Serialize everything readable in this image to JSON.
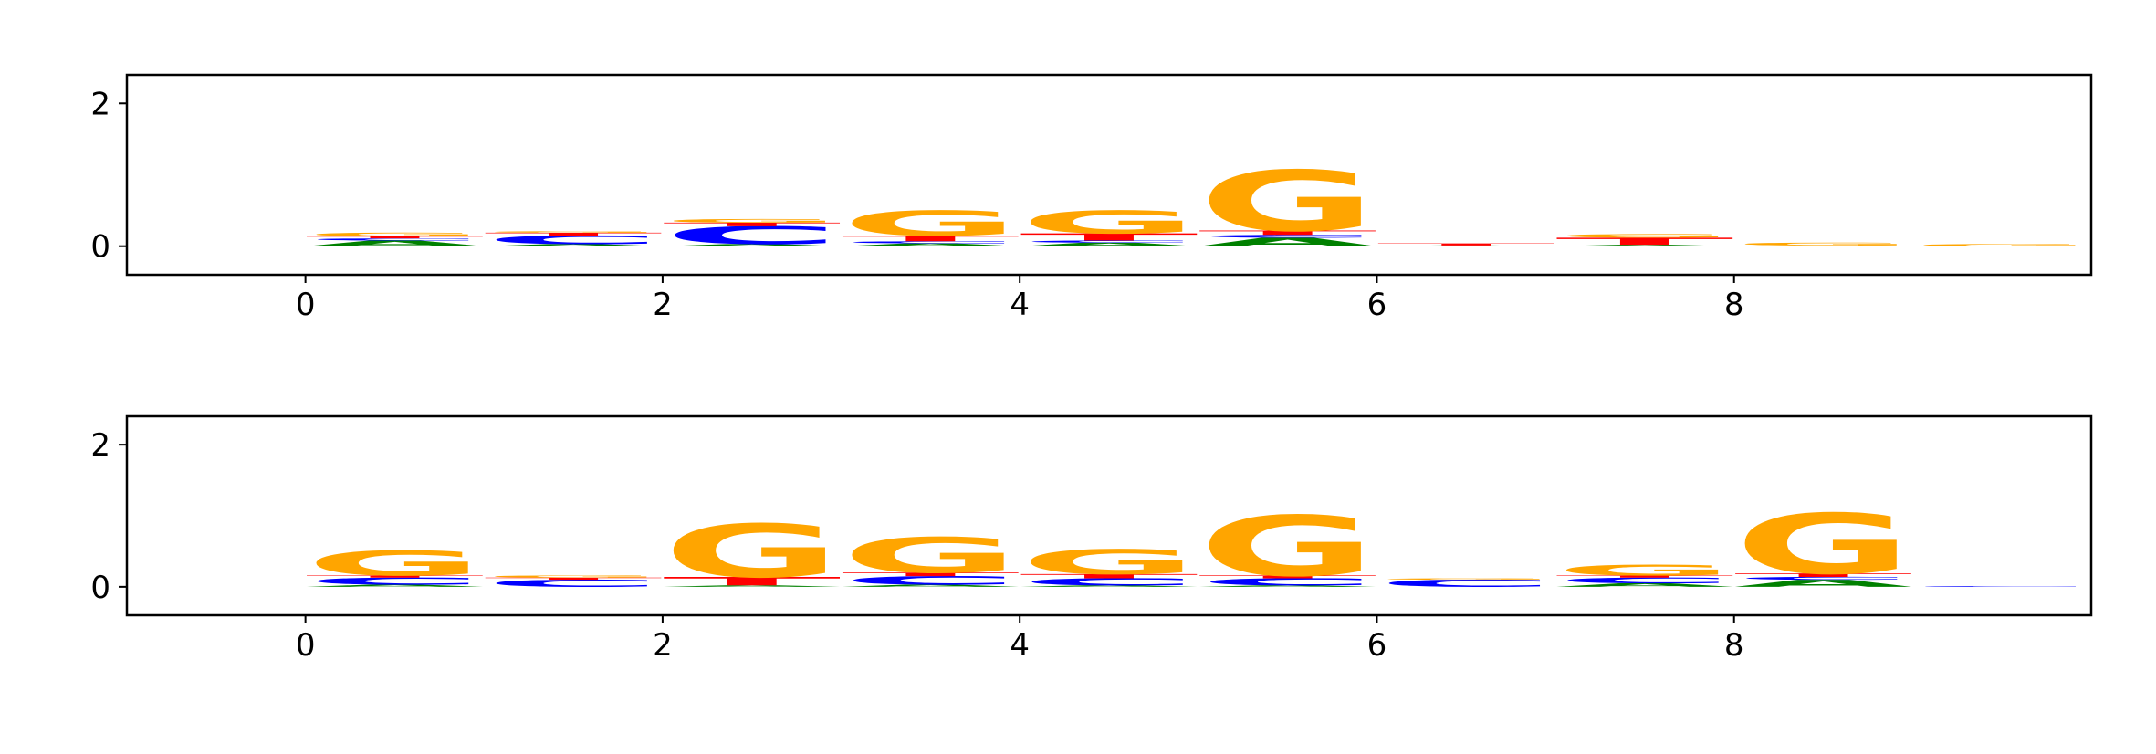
{
  "chart_data": [
    {
      "type": "logo",
      "x": [
        0,
        1,
        2,
        3,
        4,
        5,
        6,
        7,
        8,
        9
      ],
      "xlim": [
        -1,
        10
      ],
      "ylim": [
        -0.4,
        2.4
      ],
      "xticks": [
        0,
        2,
        4,
        6,
        8
      ],
      "yticks": [
        0,
        2
      ],
      "series": [
        {
          "name": "A",
          "color": "#008000",
          "values": [
            0.08,
            0.03,
            0.03,
            0.04,
            0.05,
            0.12,
            0.01,
            0.02,
            0.01,
            0
          ]
        },
        {
          "name": "C",
          "color": "#0000ff",
          "values": [
            0.03,
            0.12,
            0.25,
            0.03,
            0.03,
            0.04,
            0,
            0,
            0,
            0
          ]
        },
        {
          "name": "T",
          "color": "#ff0000",
          "values": [
            0.03,
            0.04,
            0.05,
            0.08,
            0.1,
            0.06,
            0.03,
            0.1,
            0,
            0
          ]
        },
        {
          "name": "G",
          "color": "#ffa500",
          "values": [
            0.05,
            0.02,
            0.05,
            0.35,
            0.32,
            0.85,
            0,
            0.05,
            0.04,
            0.03
          ]
        }
      ]
    },
    {
      "type": "logo",
      "x": [
        0,
        1,
        2,
        3,
        4,
        5,
        6,
        7,
        8,
        9
      ],
      "xlim": [
        -1,
        10
      ],
      "ylim": [
        -0.4,
        2.4
      ],
      "xticks": [
        0,
        2,
        4,
        6,
        8
      ],
      "yticks": [
        0,
        2
      ],
      "series": [
        {
          "name": "A",
          "color": "#008000",
          "values": [
            0.03,
            0,
            0.02,
            0.03,
            0.02,
            0.02,
            0,
            0.05,
            0.1,
            0
          ]
        },
        {
          "name": "C",
          "color": "#0000ff",
          "values": [
            0.1,
            0.1,
            0,
            0.12,
            0.1,
            0.1,
            0.1,
            0.08,
            0.04,
            0.01
          ]
        },
        {
          "name": "T",
          "color": "#ff0000",
          "values": [
            0.03,
            0.03,
            0.12,
            0.05,
            0.06,
            0.04,
            0,
            0.03,
            0.05,
            0
          ]
        },
        {
          "name": "G",
          "color": "#ffa500",
          "values": [
            0.35,
            0.03,
            0.75,
            0.5,
            0.35,
            0.85,
            0.02,
            0.15,
            0.85,
            0
          ]
        }
      ]
    }
  ]
}
